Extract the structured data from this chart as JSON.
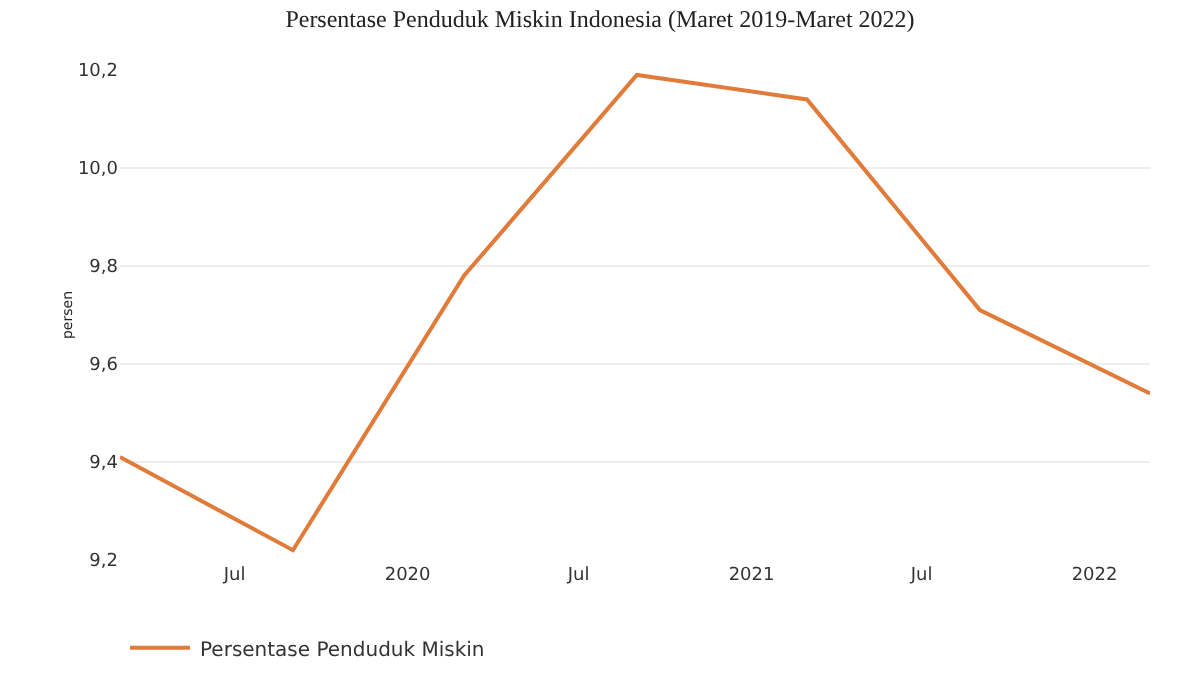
{
  "chart_data": {
    "type": "line",
    "title": "Persentase Penduduk Miskin Indonesia (Maret 2019-Maret 2022)",
    "ylabel": "persen",
    "x": [
      "2019-03",
      "2019-09",
      "2020-03",
      "2020-09",
      "2021-03",
      "2021-09",
      "2022-03"
    ],
    "series": [
      {
        "name": "Persentase Penduduk Miskin",
        "color": "#e07b39",
        "values": [
          9.41,
          9.22,
          9.78,
          10.19,
          10.14,
          9.71,
          9.54
        ]
      }
    ],
    "xlim": [
      "2019-03",
      "2022-03"
    ],
    "xticks": [
      {
        "value": "2019-07",
        "label": "Jul"
      },
      {
        "value": "2020-01",
        "label": "2020"
      },
      {
        "value": "2020-07",
        "label": "Jul"
      },
      {
        "value": "2021-01",
        "label": "2021"
      },
      {
        "value": "2021-07",
        "label": "Jul"
      },
      {
        "value": "2022-01",
        "label": "2022"
      }
    ],
    "ylim": [
      9.2,
      10.2
    ],
    "yticks": [
      {
        "value": 9.2,
        "label": "9,2"
      },
      {
        "value": 9.4,
        "label": "9,4"
      },
      {
        "value": 9.6,
        "label": "9,6"
      },
      {
        "value": 9.8,
        "label": "9,8"
      },
      {
        "value": 10,
        "label": "10,0"
      },
      {
        "value": 10.2,
        "label": "10,2"
      }
    ],
    "grid": "y",
    "legend": "bottom left",
    "marker": "none",
    "line_style": "solid"
  }
}
